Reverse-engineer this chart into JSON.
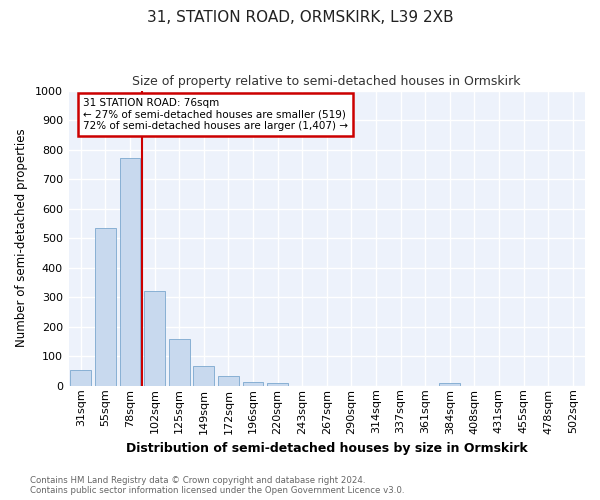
{
  "title": "31, STATION ROAD, ORMSKIRK, L39 2XB",
  "subtitle": "Size of property relative to semi-detached houses in Ormskirk",
  "xlabel": "Distribution of semi-detached houses by size in Ormskirk",
  "ylabel": "Number of semi-detached properties",
  "categories": [
    "31sqm",
    "55sqm",
    "78sqm",
    "102sqm",
    "125sqm",
    "149sqm",
    "172sqm",
    "196sqm",
    "220sqm",
    "243sqm",
    "267sqm",
    "290sqm",
    "314sqm",
    "337sqm",
    "361sqm",
    "384sqm",
    "408sqm",
    "431sqm",
    "455sqm",
    "478sqm",
    "502sqm"
  ],
  "values": [
    52,
    535,
    770,
    320,
    160,
    67,
    33,
    13,
    10,
    0,
    0,
    0,
    0,
    0,
    0,
    10,
    0,
    0,
    0,
    0,
    0
  ],
  "bar_color": "#c8d9ee",
  "bar_edge_color": "#7ba7ce",
  "vline_x_index": 2.5,
  "annotation_text_line1": "31 STATION ROAD: 76sqm",
  "annotation_text_line2": "← 27% of semi-detached houses are smaller (519)",
  "annotation_text_line3": "72% of semi-detached houses are larger (1,407) →",
  "annotation_box_color": "#ffffff",
  "annotation_box_edge": "#cc0000",
  "vline_color": "#cc0000",
  "ylim": [
    0,
    1000
  ],
  "yticks": [
    0,
    100,
    200,
    300,
    400,
    500,
    600,
    700,
    800,
    900,
    1000
  ],
  "plot_bg_color": "#edf2fb",
  "fig_bg_color": "#ffffff",
  "grid_color": "#ffffff",
  "footer_line1": "Contains HM Land Registry data © Crown copyright and database right 2024.",
  "footer_line2": "Contains public sector information licensed under the Open Government Licence v3.0."
}
